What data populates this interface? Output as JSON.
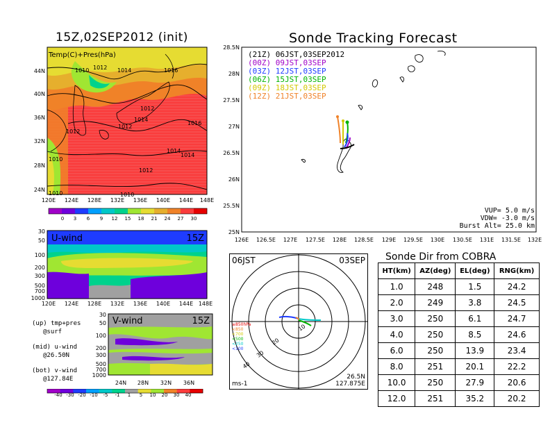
{
  "left": {
    "title": "15Z,02SEP2012 (init)",
    "map_label": "Temp(C)+Pres(hPa)",
    "lat_labels": [
      "44N",
      "40N",
      "36N",
      "32N",
      "28N",
      "24N"
    ],
    "lon_labels": [
      "120E",
      "124E",
      "128E",
      "132E",
      "136E",
      "140E",
      "144E",
      "148E"
    ],
    "isobar_labels": [
      "1010",
      "1012",
      "1014",
      "1016",
      "1012",
      "1014",
      "1012",
      "1012",
      "1016",
      "1010",
      "1014",
      "1014",
      "1012",
      "1010",
      "1010"
    ],
    "temp_colorbar": [
      "0",
      "3",
      "6",
      "9",
      "12",
      "15",
      "18",
      "21",
      "24",
      "27",
      "30"
    ],
    "temp_colors": [
      "#a000c8",
      "#6e00dc",
      "#1e3cff",
      "#00a0ff",
      "#00c8c8",
      "#00d28c",
      "#a0e632",
      "#e6dc32",
      "#e6af2d",
      "#f08228",
      "#fa3c3c",
      "#e60000"
    ],
    "uwind": {
      "label": "U-wind",
      "time": "15Z",
      "p_labels": [
        "30",
        "50",
        "100",
        "200",
        "300",
        "500",
        "700",
        "1000"
      ],
      "lon_labels": [
        "120E",
        "124E",
        "128E",
        "132E",
        "136E",
        "140E",
        "144E",
        "148E"
      ]
    },
    "vwind": {
      "label": "V-wind",
      "time": "15Z",
      "p_labels": [
        "30",
        "50",
        "100",
        "200",
        "300",
        "500",
        "700",
        "1000"
      ],
      "lat_labels": [
        "24N",
        "28N",
        "32N",
        "36N"
      ]
    },
    "legend_lines": [
      "(up) tmp+pres",
      "@surf",
      "(mid) u-wind",
      "@26.50N",
      "(bot) v-wind",
      "@127.84E"
    ],
    "wind_colorbar": [
      "-40",
      "-30",
      "-20",
      "-10",
      "-5",
      "-1",
      "1",
      "5",
      "10",
      "20",
      "30",
      "40"
    ],
    "wind_colors": [
      "#a000c8",
      "#6e00dc",
      "#1e3cff",
      "#00a0ff",
      "#00c8c8",
      "#00d28c",
      "#a0a0a0",
      "#e6dc32",
      "#a0e632",
      "#f08228",
      "#fa3c3c",
      "#e60000"
    ]
  },
  "tracking": {
    "title": "Sonde Tracking Forecast",
    "lat_labels": [
      "28.5N",
      "28N",
      "27.5N",
      "27N",
      "26.5N",
      "26N",
      "25.5N",
      "25N"
    ],
    "lon_labels": [
      "126E",
      "126.5E",
      "127E",
      "127.5E",
      "128E",
      "128.5E",
      "129E",
      "129.5E",
      "130E",
      "130.5E",
      "131E",
      "131.5E",
      "132E"
    ],
    "launches": [
      {
        "text": "(21Z)  06JST,03SEP2012",
        "color": "#000000"
      },
      {
        "text": "(00Z)  09JST,03SEP",
        "color": "#a000c8"
      },
      {
        "text": "(03Z)  12JST,03SEP",
        "color": "#1e3cff"
      },
      {
        "text": "(06Z)  15JST,03SEP",
        "color": "#00b400"
      },
      {
        "text": "(09Z)  18JST,03SEP",
        "color": "#d2c800"
      },
      {
        "text": "(12Z)  21JST,03SEP",
        "color": "#f08228"
      }
    ],
    "params": [
      "VUP=  5.0  m/s",
      "VDW= -3.0  m/s",
      "Burst Alt=  25.0  km"
    ]
  },
  "polar": {
    "time_label": "06JST",
    "date_label": "03SEP",
    "units": "ms-1",
    "location": [
      "26.5N",
      "127.875E"
    ],
    "ring_labels": [
      "10",
      "20",
      "30",
      "40"
    ],
    "levels": [
      {
        "label": "≥850hPa",
        "color": "#e60000"
      },
      {
        "label": "<850",
        "color": "#f08228"
      },
      {
        "label": "<700",
        "color": "#d2c800"
      },
      {
        "label": "<500",
        "color": "#00b400"
      },
      {
        "label": "<250",
        "color": "#00c8c8"
      },
      {
        "label": "<100",
        "color": "#1e3cff"
      }
    ]
  },
  "sonde_table": {
    "title": "Sonde Dir from COBRA",
    "headers": [
      "HT(km)",
      "AZ(deg)",
      "EL(deg)",
      "RNG(km)"
    ],
    "rows": [
      [
        "1.0",
        "248",
        "1.5",
        "24.2"
      ],
      [
        "2.0",
        "249",
        "3.8",
        "24.5"
      ],
      [
        "3.0",
        "250",
        "6.1",
        "24.7"
      ],
      [
        "4.0",
        "250",
        "8.5",
        "24.6"
      ],
      [
        "6.0",
        "250",
        "13.9",
        "23.4"
      ],
      [
        "8.0",
        "251",
        "20.1",
        "22.2"
      ],
      [
        "10.0",
        "250",
        "27.9",
        "20.6"
      ],
      [
        "12.0",
        "251",
        "35.2",
        "20.2"
      ]
    ]
  },
  "chart_data": [
    {
      "type": "heatmap",
      "title": "15Z,02SEP2012 (init)",
      "subtitle": "Temp(C)+Pres(hPa)",
      "colorbar": [
        0,
        3,
        6,
        9,
        12,
        15,
        18,
        21,
        24,
        27,
        30
      ]
    },
    {
      "type": "heatmap",
      "title": "U-wind",
      "colorbar": [
        -40,
        -30,
        -20,
        -10,
        -5,
        -1,
        1,
        5,
        10,
        20,
        30,
        40
      ]
    },
    {
      "type": "heatmap",
      "title": "V-wind",
      "colorbar": [
        -40,
        -30,
        -20,
        -10,
        -5,
        -1,
        1,
        5,
        10,
        20,
        30,
        40
      ]
    },
    {
      "type": "line",
      "title": "Sonde Tracking Forecast",
      "xlim": [
        126,
        132
      ],
      "ylim": [
        25,
        28.5
      ]
    },
    {
      "type": "table",
      "title": "Sonde Dir from COBRA",
      "columns": [
        "HT(km)",
        "AZ(deg)",
        "EL(deg)",
        "RNG(km)"
      ],
      "rows": [
        [
          1.0,
          248,
          1.5,
          24.2
        ],
        [
          2.0,
          249,
          3.8,
          24.5
        ],
        [
          3.0,
          250,
          6.1,
          24.7
        ],
        [
          4.0,
          250,
          8.5,
          24.6
        ],
        [
          6.0,
          250,
          13.9,
          23.4
        ],
        [
          8.0,
          251,
          20.1,
          22.2
        ],
        [
          10.0,
          250,
          27.9,
          20.6
        ],
        [
          12.0,
          251,
          35.2,
          20.2
        ]
      ]
    }
  ]
}
